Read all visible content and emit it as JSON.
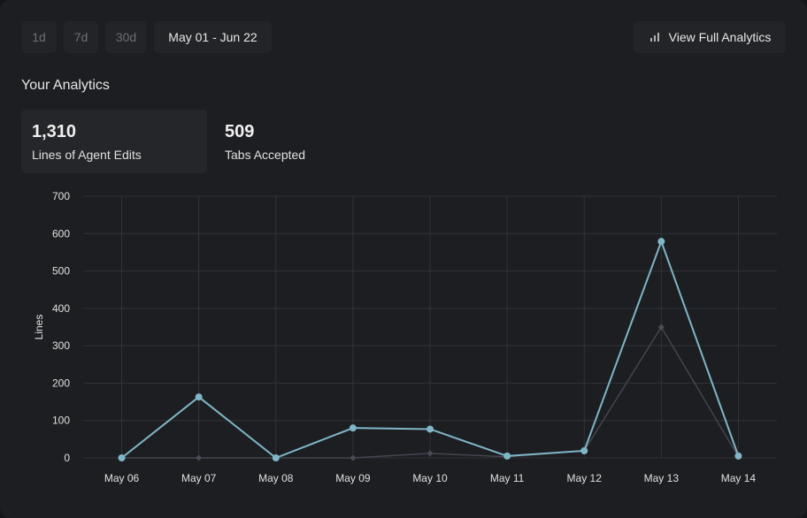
{
  "range_buttons": [
    {
      "label": "1d"
    },
    {
      "label": "7d"
    },
    {
      "label": "30d"
    },
    {
      "label": "May 01 - Jun 22"
    }
  ],
  "view_full_label": "View Full Analytics",
  "section_title": "Your Analytics",
  "stats": [
    {
      "value": "1,310",
      "label": "Lines of Agent Edits"
    },
    {
      "value": "509",
      "label": "Tabs Accepted"
    }
  ],
  "chart_data": {
    "type": "line",
    "categories": [
      "May 06",
      "May 07",
      "May 08",
      "May 09",
      "May 10",
      "May 11",
      "May 12",
      "May 13",
      "May 14"
    ],
    "ylabel": "Lines",
    "ylim": [
      0,
      700
    ],
    "yticks": [
      0,
      100,
      200,
      300,
      400,
      500,
      600,
      700
    ],
    "grid": true,
    "series": [
      {
        "name": "Lines of Agent Edits",
        "color": "#7fb6c8",
        "values": [
          0,
          163,
          0,
          80,
          77,
          5,
          19,
          579,
          5
        ]
      },
      {
        "name": "Tabs Accepted",
        "color": "#44454f",
        "values": [
          0,
          0,
          0,
          0,
          12,
          3,
          19,
          350,
          3
        ]
      }
    ]
  }
}
